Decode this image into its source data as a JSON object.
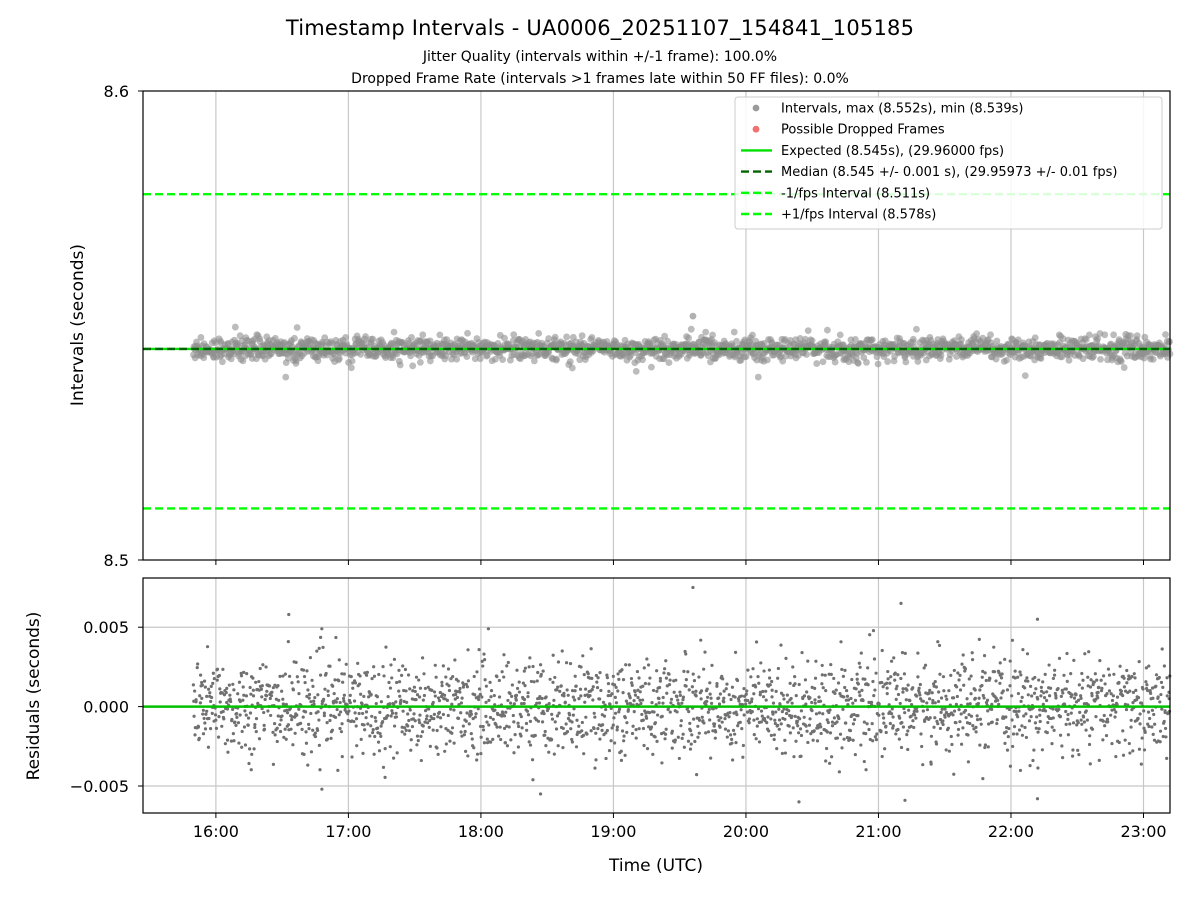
{
  "chart_data": [
    {
      "type": "scatter",
      "panel": "intervals",
      "title": "Timestamp Intervals - UA0006_20251107_154841_105185",
      "subtitle_line1": "Jitter Quality (intervals within +/-1 frame): 100.0%",
      "subtitle_line2": "Dropped Frame Rate (intervals >1 frames late within 50 FF files): 0.0%",
      "xlabel": "",
      "ylabel": "Intervals (seconds)",
      "ylim": [
        8.5,
        8.6
      ],
      "y_ticks": [
        "8.6",
        "8.5"
      ],
      "xlim_hours": [
        15.45,
        23.2
      ],
      "x_tick_hours": [
        16,
        17,
        18,
        19,
        20,
        21,
        22,
        23
      ],
      "x_tick_labels": [
        "16:00",
        "17:00",
        "18:00",
        "19:00",
        "20:00",
        "21:00",
        "22:00",
        "23:00"
      ],
      "grid": "x",
      "legend_position": "top-right",
      "series": [
        {
          "name": "Intervals, max (8.552s), min (8.539s)",
          "kind": "scatter",
          "color": "#909090",
          "x_range_hours": [
            15.83,
            23.2
          ],
          "max": 8.552,
          "min": 8.539,
          "center": 8.545
        },
        {
          "name": "Possible Dropped Frames",
          "kind": "scatter",
          "color": "#f06060",
          "values": []
        },
        {
          "name": "Expected (8.545s), (29.96000 fps)",
          "kind": "hline",
          "value": 8.545,
          "color": "#00e000",
          "style": "solid"
        },
        {
          "name": "Median (8.545 +/- 0.001 s), (29.95973 +/- 0.01 fps)",
          "kind": "hline",
          "value": 8.545,
          "color": "#006400",
          "style": "dashed"
        },
        {
          "name": "-1/fps Interval (8.511s)",
          "kind": "hline",
          "value": 8.511,
          "color": "#00ff00",
          "style": "dashed"
        },
        {
          "name": "+1/fps Interval (8.578s)",
          "kind": "hline",
          "value": 8.578,
          "color": "#00ff00",
          "style": "dashed"
        }
      ]
    },
    {
      "type": "scatter",
      "panel": "residuals",
      "xlabel": "Time (UTC)",
      "ylabel": "Residuals (seconds)",
      "ylim": [
        -0.0067,
        0.0081
      ],
      "y_ticks": [
        0.005,
        0.0,
        -0.005
      ],
      "y_tick_labels": [
        "0.005",
        "0.000",
        "−0.005"
      ],
      "xlim_hours": [
        15.45,
        23.2
      ],
      "x_tick_hours": [
        16,
        17,
        18,
        19,
        20,
        21,
        22,
        23
      ],
      "x_tick_labels": [
        "16:00",
        "17:00",
        "18:00",
        "19:00",
        "20:00",
        "21:00",
        "22:00",
        "23:00"
      ],
      "grid": "both",
      "series": [
        {
          "name": "Residuals",
          "kind": "scatter",
          "color": "#707070",
          "x_range_hours": [
            15.83,
            23.2
          ],
          "min": -0.006,
          "max": 0.0075,
          "std": 0.0015
        },
        {
          "name": "Zero line",
          "kind": "hline",
          "value": 0.0,
          "color": "#00c000",
          "style": "solid"
        }
      ],
      "outliers": [
        {
          "x": 19.6,
          "y": 0.0075
        },
        {
          "x": 16.55,
          "y": 0.0058
        },
        {
          "x": 21.17,
          "y": 0.0065
        },
        {
          "x": 22.2,
          "y": 0.0055
        },
        {
          "x": 20.4,
          "y": -0.006
        },
        {
          "x": 21.2,
          "y": -0.0059
        },
        {
          "x": 22.2,
          "y": -0.0058
        },
        {
          "x": 18.45,
          "y": -0.0055
        },
        {
          "x": 16.8,
          "y": -0.0052
        }
      ]
    }
  ]
}
